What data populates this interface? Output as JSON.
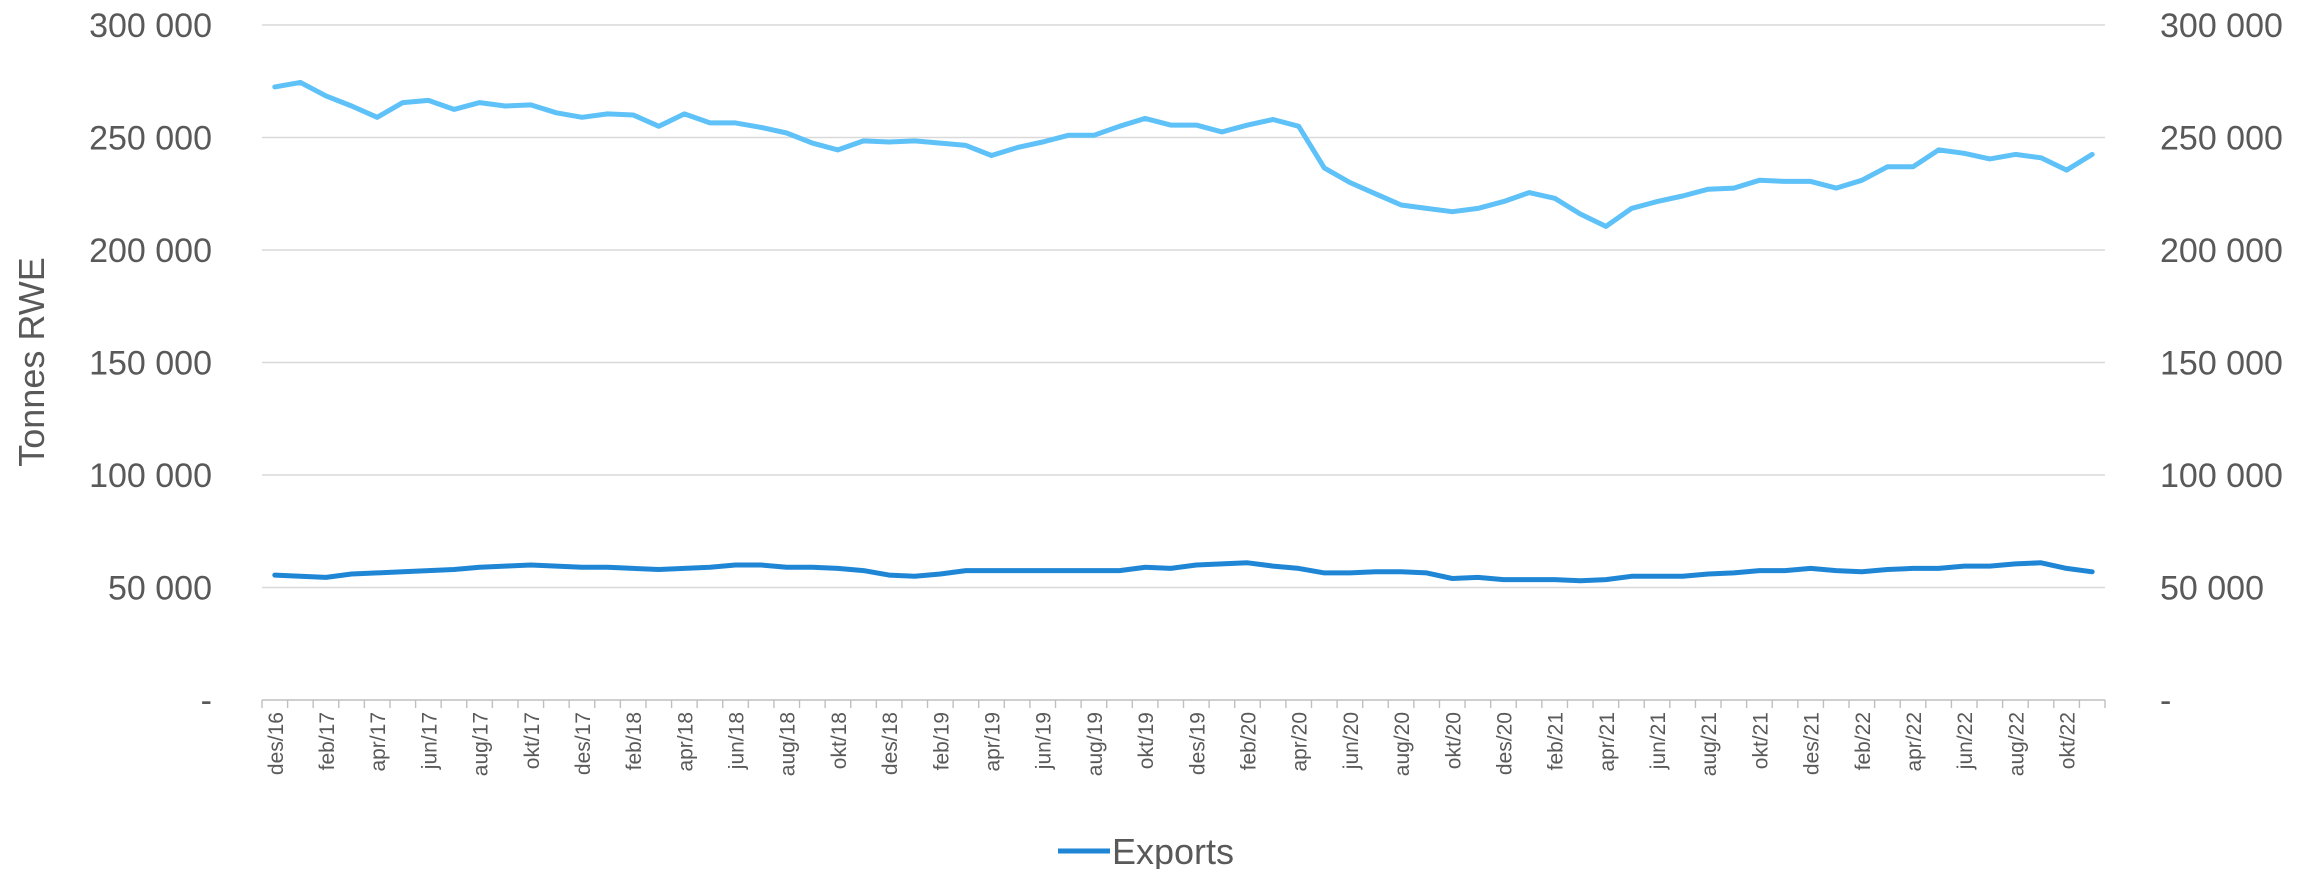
{
  "chart_data": {
    "type": "line",
    "title": "",
    "xlabel": "",
    "ylabel": "Tonnes RWE",
    "ylim": [
      0,
      300000
    ],
    "yticks": [
      0,
      50000,
      100000,
      150000,
      200000,
      250000,
      300000
    ],
    "ytick_labels": [
      "-",
      "50 000",
      "100 000",
      "150 000",
      "200 000",
      "250 000",
      "300 000"
    ],
    "secondary_ytick_labels": [
      "-",
      "50 000",
      "100 000",
      "150 000",
      "200 000",
      "250 000",
      "300 000"
    ],
    "grid": true,
    "legend_position": "bottom",
    "x": [
      "des/16",
      "jan/17",
      "feb/17",
      "mar/17",
      "apr/17",
      "mai/17",
      "jun/17",
      "jul/17",
      "aug/17",
      "sep/17",
      "okt/17",
      "nov/17",
      "des/17",
      "jan/18",
      "feb/18",
      "mar/18",
      "apr/18",
      "mai/18",
      "jun/18",
      "jul/18",
      "aug/18",
      "sep/18",
      "okt/18",
      "nov/18",
      "des/18",
      "jan/19",
      "feb/19",
      "mar/19",
      "apr/19",
      "mai/19",
      "jun/19",
      "jul/19",
      "aug/19",
      "sep/19",
      "okt/19",
      "nov/19",
      "des/19",
      "jan/20",
      "feb/20",
      "mar/20",
      "apr/20",
      "mai/20",
      "jun/20",
      "jul/20",
      "aug/20",
      "sep/20",
      "okt/20",
      "nov/20",
      "des/20",
      "jan/21",
      "feb/21",
      "mar/21",
      "apr/21",
      "mai/21",
      "jun/21",
      "jul/21",
      "aug/21",
      "sep/21",
      "okt/21",
      "nov/21",
      "des/21",
      "jan/22",
      "feb/22",
      "mar/22",
      "apr/22",
      "mai/22",
      "jun/22",
      "jul/22",
      "aug/22",
      "sep/22",
      "okt/22",
      "nov/22"
    ],
    "x_tick_labels": [
      "des/16",
      "feb/17",
      "apr/17",
      "jun/17",
      "aug/17",
      "okt/17",
      "des/17",
      "feb/18",
      "apr/18",
      "jun/18",
      "aug/18",
      "okt/18",
      "des/18",
      "feb/19",
      "apr/19",
      "jun/19",
      "aug/19",
      "okt/19",
      "des/19",
      "feb/20",
      "apr/20",
      "jun/20",
      "aug/20",
      "okt/20",
      "des/20",
      "feb/21",
      "apr/21",
      "jun/21",
      "aug/21",
      "okt/21",
      "des/21",
      "feb/22",
      "apr/22",
      "jun/22",
      "aug/22",
      "okt/22"
    ],
    "series": [
      {
        "name": "",
        "color": "#5ec1f7",
        "values": [
          272500,
          274500,
          268500,
          264000,
          259000,
          265500,
          266500,
          262500,
          265500,
          264000,
          264500,
          261000,
          259000,
          260500,
          260000,
          255000,
          260500,
          256500,
          256500,
          254500,
          252000,
          247500,
          244500,
          248500,
          248000,
          248500,
          247500,
          246500,
          242000,
          245500,
          248000,
          251000,
          251000,
          255000,
          258500,
          255500,
          255500,
          252500,
          255500,
          258000,
          255000,
          236500,
          230000,
          225000,
          220000,
          218500,
          217000,
          218500,
          221500,
          225500,
          223000,
          216000,
          210500,
          218500,
          221500,
          224000,
          227000,
          227500,
          231000,
          230500,
          230500,
          227500,
          231000,
          237000,
          237000,
          244500,
          243000,
          240500,
          242500,
          241000,
          235500,
          242500
        ]
      },
      {
        "name": "Exports",
        "color": "#1f86d6",
        "values": [
          55500,
          55000,
          54500,
          56000,
          56500,
          57000,
          57500,
          58000,
          59000,
          59500,
          60000,
          59500,
          59000,
          59000,
          58500,
          58000,
          58500,
          59000,
          60000,
          60000,
          59000,
          59000,
          58500,
          57500,
          55500,
          55000,
          56000,
          57500,
          57500,
          57500,
          57500,
          57500,
          57500,
          57500,
          59000,
          58500,
          60000,
          60500,
          61000,
          59500,
          58500,
          56500,
          56500,
          57000,
          57000,
          56500,
          54000,
          54500,
          53500,
          53500,
          53500,
          53000,
          53500,
          55000,
          55000,
          55000,
          56000,
          56500,
          57500,
          57500,
          58500,
          57500,
          57000,
          58000,
          58500,
          58500,
          59500,
          59500,
          60500,
          61000,
          58500,
          57000
        ]
      }
    ]
  }
}
